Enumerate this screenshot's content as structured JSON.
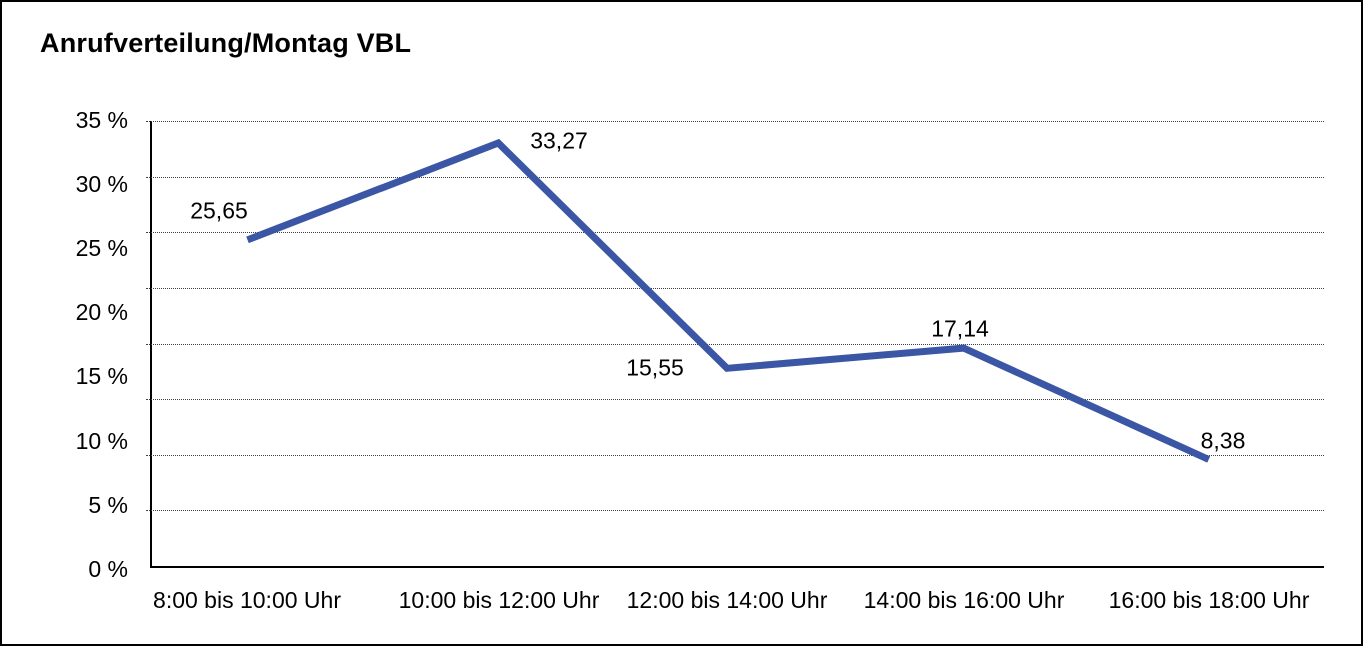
{
  "title": "Anrufverteilung/Montag VBL",
  "colors": {
    "line": "#3B56A5",
    "grid": "#3d3d3d",
    "axis": "#000000",
    "background": "#ffffff",
    "text": "#000000"
  },
  "chart_data": {
    "type": "line",
    "title": "Anrufverteilung/Montag VBL",
    "categories": [
      "8:00 bis 10:00 Uhr",
      "10:00 bis 12:00 Uhr",
      "12:00 bis 14:00 Uhr",
      "14:00 bis 16:00 Uhr",
      "16:00 bis 18:00 Uhr"
    ],
    "values": [
      25.65,
      33.27,
      15.55,
      17.14,
      8.38
    ],
    "point_labels": [
      "25,65",
      "33,27",
      "15,55",
      "17,14",
      "8,38"
    ],
    "y_ticks": [
      "35 %",
      "30 %",
      "25 %",
      "20 %",
      "15 %",
      "10 %",
      "5 %",
      "0 %"
    ],
    "ylim": [
      0,
      35
    ],
    "xlabel": "",
    "ylabel": "",
    "grid": "horizontal-dotted",
    "legend": "none",
    "line_width": 7
  }
}
